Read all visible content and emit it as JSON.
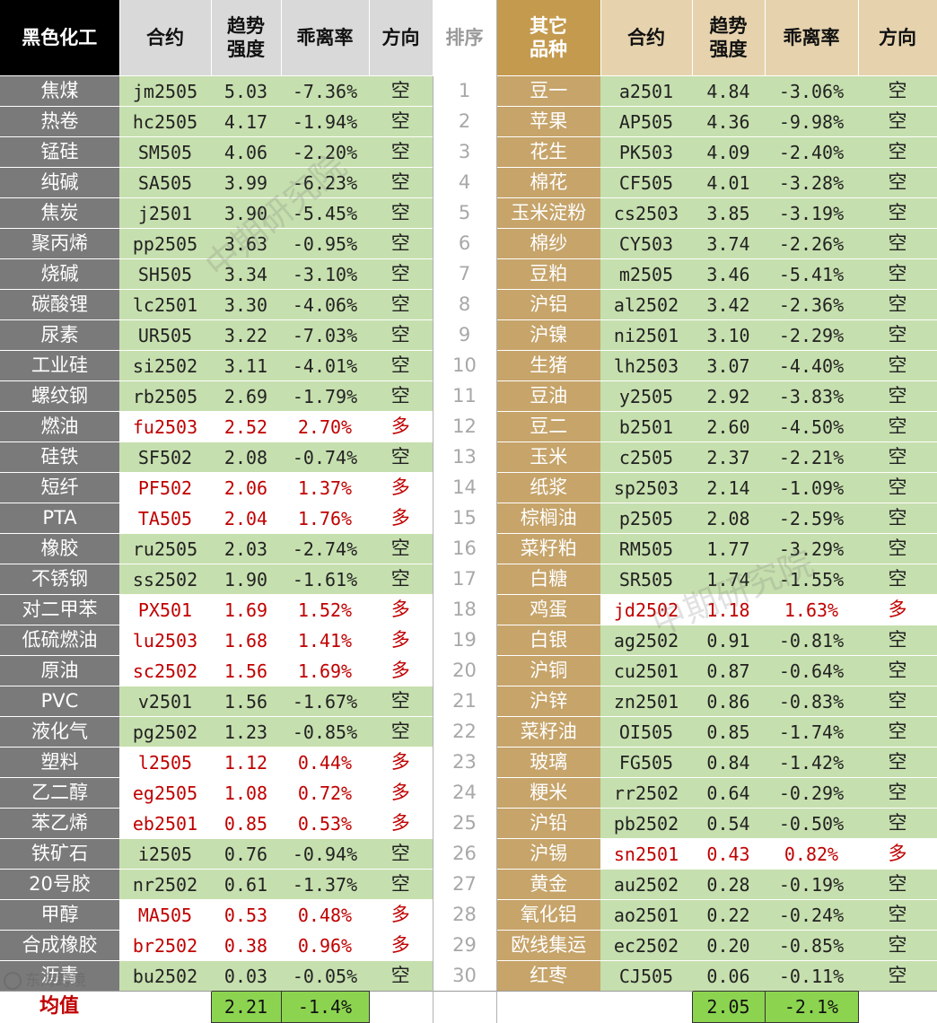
{
  "header": {
    "left_group": "黑色化工",
    "contract": "合约",
    "trend": "趋势\n强度",
    "deviation": "乖离率",
    "direction": "方向",
    "rank": "排序",
    "right_group": "其它\n品种"
  },
  "rows": [
    {
      "rank": "1",
      "l": {
        "name": "焦煤",
        "code": "jm2505",
        "trend": "5.03",
        "dev": "-7.36%",
        "dir": "空"
      },
      "r": {
        "name": "豆一",
        "code": "a2501",
        "trend": "4.84",
        "dev": "-3.06%",
        "dir": "空"
      }
    },
    {
      "rank": "2",
      "l": {
        "name": "热卷",
        "code": "hc2505",
        "trend": "4.17",
        "dev": "-1.94%",
        "dir": "空"
      },
      "r": {
        "name": "苹果",
        "code": "AP505",
        "trend": "4.36",
        "dev": "-9.98%",
        "dir": "空"
      }
    },
    {
      "rank": "3",
      "l": {
        "name": "锰硅",
        "code": "SM505",
        "trend": "4.06",
        "dev": "-2.20%",
        "dir": "空"
      },
      "r": {
        "name": "花生",
        "code": "PK503",
        "trend": "4.09",
        "dev": "-2.40%",
        "dir": "空"
      }
    },
    {
      "rank": "4",
      "l": {
        "name": "纯碱",
        "code": "SA505",
        "trend": "3.99",
        "dev": "-6.23%",
        "dir": "空"
      },
      "r": {
        "name": "棉花",
        "code": "CF505",
        "trend": "4.01",
        "dev": "-3.28%",
        "dir": "空"
      }
    },
    {
      "rank": "5",
      "l": {
        "name": "焦炭",
        "code": "j2501",
        "trend": "3.90",
        "dev": "-5.45%",
        "dir": "空"
      },
      "r": {
        "name": "玉米淀粉",
        "code": "cs2503",
        "trend": "3.85",
        "dev": "-3.19%",
        "dir": "空"
      }
    },
    {
      "rank": "6",
      "l": {
        "name": "聚丙烯",
        "code": "pp2505",
        "trend": "3.63",
        "dev": "-0.95%",
        "dir": "空"
      },
      "r": {
        "name": "棉纱",
        "code": "CY503",
        "trend": "3.74",
        "dev": "-2.26%",
        "dir": "空"
      }
    },
    {
      "rank": "7",
      "l": {
        "name": "烧碱",
        "code": "SH505",
        "trend": "3.34",
        "dev": "-3.10%",
        "dir": "空"
      },
      "r": {
        "name": "豆粕",
        "code": "m2505",
        "trend": "3.46",
        "dev": "-5.41%",
        "dir": "空"
      }
    },
    {
      "rank": "8",
      "l": {
        "name": "碳酸锂",
        "code": "lc2501",
        "trend": "3.30",
        "dev": "-4.06%",
        "dir": "空"
      },
      "r": {
        "name": "沪铝",
        "code": "al2502",
        "trend": "3.42",
        "dev": "-2.36%",
        "dir": "空"
      }
    },
    {
      "rank": "9",
      "l": {
        "name": "尿素",
        "code": "UR505",
        "trend": "3.22",
        "dev": "-7.03%",
        "dir": "空"
      },
      "r": {
        "name": "沪镍",
        "code": "ni2501",
        "trend": "3.10",
        "dev": "-2.29%",
        "dir": "空"
      }
    },
    {
      "rank": "10",
      "l": {
        "name": "工业硅",
        "code": "si2502",
        "trend": "3.11",
        "dev": "-4.01%",
        "dir": "空"
      },
      "r": {
        "name": "生猪",
        "code": "lh2503",
        "trend": "3.07",
        "dev": "-4.40%",
        "dir": "空"
      }
    },
    {
      "rank": "11",
      "l": {
        "name": "螺纹钢",
        "code": "rb2505",
        "trend": "2.69",
        "dev": "-1.79%",
        "dir": "空"
      },
      "r": {
        "name": "豆油",
        "code": "y2505",
        "trend": "2.92",
        "dev": "-3.83%",
        "dir": "空"
      }
    },
    {
      "rank": "12",
      "l": {
        "name": "燃油",
        "code": "fu2503",
        "trend": "2.52",
        "dev": "2.70%",
        "dir": "多"
      },
      "r": {
        "name": "豆二",
        "code": "b2501",
        "trend": "2.60",
        "dev": "-4.50%",
        "dir": "空"
      }
    },
    {
      "rank": "13",
      "l": {
        "name": "硅铁",
        "code": "SF502",
        "trend": "2.08",
        "dev": "-0.74%",
        "dir": "空"
      },
      "r": {
        "name": "玉米",
        "code": "c2505",
        "trend": "2.37",
        "dev": "-2.21%",
        "dir": "空"
      }
    },
    {
      "rank": "14",
      "l": {
        "name": "短纤",
        "code": "PF502",
        "trend": "2.06",
        "dev": "1.37%",
        "dir": "多"
      },
      "r": {
        "name": "纸浆",
        "code": "sp2503",
        "trend": "2.14",
        "dev": "-1.09%",
        "dir": "空"
      }
    },
    {
      "rank": "15",
      "l": {
        "name": "PTA",
        "code": "TA505",
        "trend": "2.04",
        "dev": "1.76%",
        "dir": "多"
      },
      "r": {
        "name": "棕榈油",
        "code": "p2505",
        "trend": "2.08",
        "dev": "-2.59%",
        "dir": "空"
      }
    },
    {
      "rank": "16",
      "l": {
        "name": "橡胶",
        "code": "ru2505",
        "trend": "2.03",
        "dev": "-2.74%",
        "dir": "空"
      },
      "r": {
        "name": "菜籽粕",
        "code": "RM505",
        "trend": "1.77",
        "dev": "-3.29%",
        "dir": "空"
      }
    },
    {
      "rank": "17",
      "l": {
        "name": "不锈钢",
        "code": "ss2502",
        "trend": "1.90",
        "dev": "-1.61%",
        "dir": "空"
      },
      "r": {
        "name": "白糖",
        "code": "SR505",
        "trend": "1.74",
        "dev": "-1.55%",
        "dir": "空"
      }
    },
    {
      "rank": "18",
      "l": {
        "name": "对二甲苯",
        "code": "PX501",
        "trend": "1.69",
        "dev": "1.52%",
        "dir": "多"
      },
      "r": {
        "name": "鸡蛋",
        "code": "jd2502",
        "trend": "1.18",
        "dev": "1.63%",
        "dir": "多"
      }
    },
    {
      "rank": "19",
      "l": {
        "name": "低硫燃油",
        "code": "lu2503",
        "trend": "1.68",
        "dev": "1.41%",
        "dir": "多"
      },
      "r": {
        "name": "白银",
        "code": "ag2502",
        "trend": "0.91",
        "dev": "-0.81%",
        "dir": "空"
      }
    },
    {
      "rank": "20",
      "l": {
        "name": "原油",
        "code": "sc2502",
        "trend": "1.56",
        "dev": "1.69%",
        "dir": "多"
      },
      "r": {
        "name": "沪铜",
        "code": "cu2501",
        "trend": "0.87",
        "dev": "-0.64%",
        "dir": "空"
      }
    },
    {
      "rank": "21",
      "l": {
        "name": "PVC",
        "code": "v2501",
        "trend": "1.56",
        "dev": "-1.67%",
        "dir": "空"
      },
      "r": {
        "name": "沪锌",
        "code": "zn2501",
        "trend": "0.86",
        "dev": "-0.83%",
        "dir": "空"
      }
    },
    {
      "rank": "22",
      "l": {
        "name": "液化气",
        "code": "pg2502",
        "trend": "1.23",
        "dev": "-0.85%",
        "dir": "空"
      },
      "r": {
        "name": "菜籽油",
        "code": "OI505",
        "trend": "0.85",
        "dev": "-1.74%",
        "dir": "空"
      }
    },
    {
      "rank": "23",
      "l": {
        "name": "塑料",
        "code": "l2505",
        "trend": "1.12",
        "dev": "0.44%",
        "dir": "多"
      },
      "r": {
        "name": "玻璃",
        "code": "FG505",
        "trend": "0.84",
        "dev": "-1.42%",
        "dir": "空"
      }
    },
    {
      "rank": "24",
      "l": {
        "name": "乙二醇",
        "code": "eg2505",
        "trend": "1.08",
        "dev": "0.72%",
        "dir": "多"
      },
      "r": {
        "name": "粳米",
        "code": "rr2502",
        "trend": "0.64",
        "dev": "-0.29%",
        "dir": "空"
      }
    },
    {
      "rank": "25",
      "l": {
        "name": "苯乙烯",
        "code": "eb2501",
        "trend": "0.85",
        "dev": "0.53%",
        "dir": "多"
      },
      "r": {
        "name": "沪铅",
        "code": "pb2502",
        "trend": "0.54",
        "dev": "-0.50%",
        "dir": "空"
      }
    },
    {
      "rank": "26",
      "l": {
        "name": "铁矿石",
        "code": "i2505",
        "trend": "0.76",
        "dev": "-0.94%",
        "dir": "空"
      },
      "r": {
        "name": "沪锡",
        "code": "sn2501",
        "trend": "0.43",
        "dev": "0.82%",
        "dir": "多"
      }
    },
    {
      "rank": "27",
      "l": {
        "name": "20号胶",
        "code": "nr2502",
        "trend": "0.61",
        "dev": "-1.37%",
        "dir": "空"
      },
      "r": {
        "name": "黄金",
        "code": "au2502",
        "trend": "0.28",
        "dev": "-0.19%",
        "dir": "空"
      }
    },
    {
      "rank": "28",
      "l": {
        "name": "甲醇",
        "code": "MA505",
        "trend": "0.53",
        "dev": "0.48%",
        "dir": "多"
      },
      "r": {
        "name": "氧化铝",
        "code": "ao2501",
        "trend": "0.22",
        "dev": "-0.24%",
        "dir": "空"
      }
    },
    {
      "rank": "29",
      "l": {
        "name": "合成橡胶",
        "code": "br2502",
        "trend": "0.38",
        "dev": "0.96%",
        "dir": "多"
      },
      "r": {
        "name": "欧线集运",
        "code": "ec2502",
        "trend": "0.20",
        "dev": "-0.85%",
        "dir": "空"
      }
    },
    {
      "rank": "30",
      "l": {
        "name": "沥青",
        "code": "bu2502",
        "trend": "0.03",
        "dev": "-0.05%",
        "dir": "空"
      },
      "r": {
        "name": "红枣",
        "code": "CJ505",
        "trend": "0.06",
        "dev": "-0.11%",
        "dir": "空"
      }
    }
  ],
  "footer": {
    "label": "均值",
    "left_trend_avg": "2.21",
    "left_dev_avg": "-1.4%",
    "right_trend_avg": "2.05",
    "right_dev_avg": "-2.1%"
  },
  "watermark": {
    "text1": "中期研究院",
    "text2": "中期研究院",
    "logo": "东海跨境"
  },
  "colors": {
    "short_bg": "#c6dfae",
    "long_text": "#c00000",
    "avg_highlight": "#8cd450",
    "left_name_bg": "#7a7a7a",
    "right_name_bg": "#c6a46a"
  }
}
